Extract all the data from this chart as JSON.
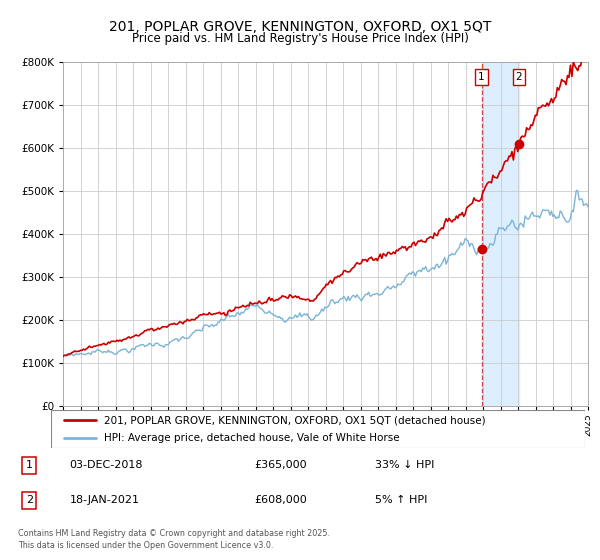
{
  "title_line1": "201, POPLAR GROVE, KENNINGTON, OXFORD, OX1 5QT",
  "title_line2": "Price paid vs. HM Land Registry's House Price Index (HPI)",
  "legend_line1": "201, POPLAR GROVE, KENNINGTON, OXFORD, OX1 5QT (detached house)",
  "legend_line2": "HPI: Average price, detached house, Vale of White Horse",
  "annotation1_label": "1",
  "annotation1_date": "03-DEC-2018",
  "annotation1_price": "£365,000",
  "annotation1_hpi": "33% ↓ HPI",
  "annotation2_label": "2",
  "annotation2_date": "18-JAN-2021",
  "annotation2_price": "£608,000",
  "annotation2_hpi": "5% ↑ HPI",
  "footer": "Contains HM Land Registry data © Crown copyright and database right 2025.\nThis data is licensed under the Open Government Licence v3.0.",
  "hpi_color": "#7ab4d8",
  "price_color": "#cc0000",
  "marker_color": "#cc0000",
  "vline_color": "#cc0000",
  "highlight_color": "#ddeeff",
  "background_color": "#ffffff",
  "grid_color": "#cccccc",
  "ylim_max": 800000,
  "x_start_year": 1995,
  "x_end_year": 2025,
  "sale1_year": 2018.92,
  "sale1_price": 365000,
  "sale2_year": 2021.05,
  "sale2_price": 608000
}
